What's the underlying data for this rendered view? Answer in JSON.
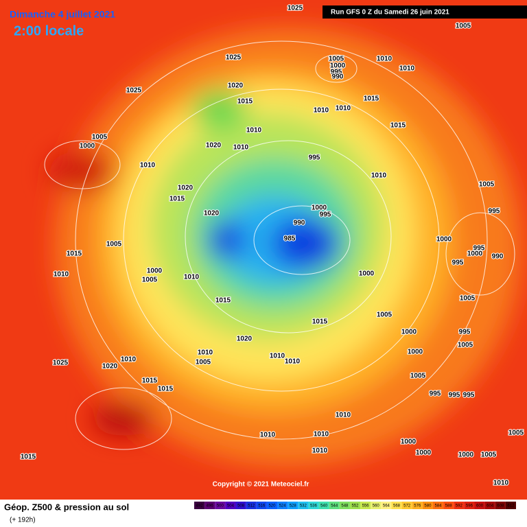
{
  "header": {
    "date": "Dimanche 4 juillet 2021",
    "time": "2:00 locale",
    "run": "Run GFS 0 Z du Samedi 26 juin 2021"
  },
  "copyright": "Copyright © 2021 Meteociel.fr",
  "footer": {
    "title": "Géop. Z500 & pression au sol",
    "lead": "(+ 192h)"
  },
  "scale": {
    "values": [
      492,
      496,
      500,
      504,
      508,
      512,
      516,
      520,
      524,
      528,
      532,
      536,
      540,
      544,
      548,
      552,
      556,
      560,
      564,
      568,
      572,
      576,
      580,
      584,
      588,
      592,
      596,
      600,
      604,
      608,
      612
    ],
    "colors": [
      "#3a0040",
      "#5a0070",
      "#6a0aa0",
      "#5000c0",
      "#3010d0",
      "#1830e0",
      "#1048f0",
      "#0a60ff",
      "#1080ff",
      "#10a0ff",
      "#20c0f0",
      "#30d8d8",
      "#40e0b0",
      "#60e080",
      "#80e060",
      "#a0e050",
      "#c8e850",
      "#e8f070",
      "#fff080",
      "#ffe050",
      "#ffc830",
      "#ffb020",
      "#ff9010",
      "#ff7010",
      "#ff5010",
      "#f03010",
      "#e02010",
      "#c81010",
      "#a80808",
      "#800404",
      "#500000"
    ]
  },
  "isobars": [
    1025,
    1005,
    1025,
    1005,
    1000,
    995,
    990,
    1010,
    1010,
    1025,
    1020,
    1015,
    1015,
    1010,
    1010,
    1015,
    1005,
    1000,
    1010,
    1020,
    1010,
    995,
    1010,
    1010,
    1005,
    1020,
    1015,
    1000,
    995,
    990,
    1020,
    995,
    985,
    1000,
    995,
    1000,
    990,
    1005,
    1015,
    995,
    1010,
    1000,
    1010,
    1000,
    1005,
    1005,
    1015,
    1005,
    1015,
    1000,
    995,
    1020,
    1005,
    1000,
    1010,
    1010,
    1010,
    1005,
    1010,
    1020,
    1025,
    1005,
    995,
    995,
    995,
    1015,
    1015,
    1010,
    1005,
    1010,
    1010,
    1000,
    1010,
    1000,
    1000,
    1005,
    1015,
    1010
  ]
}
